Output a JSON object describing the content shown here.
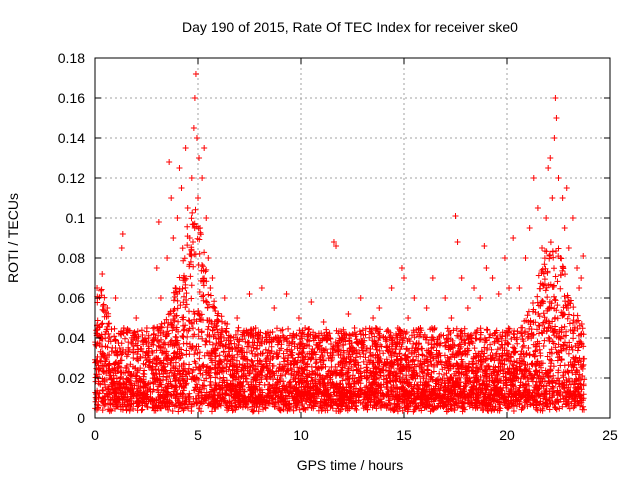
{
  "chart_data": {
    "type": "scatter",
    "title": "Day 190 of 2015, Rate Of TEC Index for receiver ske0",
    "xlabel": "GPS time / hours",
    "ylabel": "ROTI / TECUs",
    "xlim": [
      0,
      25
    ],
    "ylim": [
      0,
      0.18
    ],
    "x_ticks": [
      "0",
      "5",
      "10",
      "15",
      "20",
      "25"
    ],
    "y_ticks": [
      "0",
      "0.02",
      "0.04",
      "0.06",
      "0.08",
      "0.1",
      "0.12",
      "0.14",
      "0.16",
      "0.18"
    ],
    "grid": true,
    "marker": "+",
    "colors": {
      "series": "#ff0000"
    },
    "series": [
      {
        "x": [
          0.05,
          0.1,
          0.2,
          0.3,
          0.35,
          0.5,
          0.6,
          0.8,
          1.0,
          1.2,
          1.3,
          1.35,
          1.4,
          1.5,
          1.8,
          2.0,
          2.2,
          2.5,
          2.6,
          2.8,
          3.0,
          3.1,
          3.2,
          3.3,
          3.5,
          3.6,
          3.7,
          3.8,
          3.9,
          4.0,
          4.1,
          4.2,
          4.3,
          4.4,
          4.5,
          4.6,
          4.7,
          4.8,
          4.85,
          4.9,
          4.95,
          5.0,
          5.05,
          5.1,
          5.2,
          5.3,
          5.4,
          5.5,
          5.6,
          5.7,
          5.8,
          6.0,
          6.3,
          6.6,
          6.9,
          7.2,
          7.5,
          7.8,
          8.1,
          8.4,
          8.7,
          9.0,
          9.3,
          9.6,
          9.9,
          10.2,
          10.5,
          10.8,
          11.1,
          11.4,
          11.6,
          11.7,
          12.0,
          12.3,
          12.6,
          12.9,
          13.2,
          13.5,
          13.8,
          14.1,
          14.4,
          14.7,
          14.9,
          15.0,
          15.2,
          15.5,
          15.8,
          16.1,
          16.4,
          16.7,
          17.0,
          17.3,
          17.5,
          17.6,
          17.8,
          18.1,
          18.4,
          18.7,
          18.9,
          19.0,
          19.3,
          19.6,
          19.9,
          20.1,
          20.3,
          20.6,
          20.9,
          21.1,
          21.3,
          21.5,
          21.7,
          21.9,
          22.0,
          22.1,
          22.2,
          22.3,
          22.35,
          22.4,
          22.5,
          22.6,
          22.7,
          22.8,
          22.9,
          23.0,
          23.2,
          23.4,
          23.5,
          23.6,
          23.7
        ],
        "y": [
          0.012,
          0.065,
          0.025,
          0.04,
          0.072,
          0.03,
          0.055,
          0.02,
          0.06,
          0.035,
          0.085,
          0.092,
          0.045,
          0.025,
          0.015,
          0.05,
          0.03,
          0.01,
          0.04,
          0.025,
          0.075,
          0.098,
          0.06,
          0.035,
          0.08,
          0.128,
          0.11,
          0.09,
          0.065,
          0.1,
          0.125,
          0.115,
          0.07,
          0.135,
          0.105,
          0.09,
          0.12,
          0.145,
          0.16,
          0.172,
          0.14,
          0.11,
          0.13,
          0.095,
          0.12,
          0.135,
          0.1,
          0.08,
          0.065,
          0.07,
          0.055,
          0.04,
          0.06,
          0.035,
          0.05,
          0.03,
          0.062,
          0.045,
          0.065,
          0.025,
          0.055,
          0.04,
          0.062,
          0.03,
          0.05,
          0.045,
          0.058,
          0.035,
          0.048,
          0.04,
          0.088,
          0.086,
          0.03,
          0.052,
          0.045,
          0.06,
          0.035,
          0.05,
          0.055,
          0.04,
          0.065,
          0.045,
          0.075,
          0.07,
          0.05,
          0.06,
          0.045,
          0.055,
          0.07,
          0.04,
          0.06,
          0.05,
          0.101,
          0.088,
          0.07,
          0.055,
          0.065,
          0.06,
          0.086,
          0.075,
          0.07,
          0.062,
          0.08,
          0.065,
          0.09,
          0.065,
          0.08,
          0.095,
          0.12,
          0.105,
          0.085,
          0.1,
          0.125,
          0.13,
          0.11,
          0.14,
          0.16,
          0.15,
          0.12,
          0.08,
          0.11,
          0.095,
          0.115,
          0.085,
          0.1,
          0.075,
          0.065,
          0.07,
          0.081
        ]
      }
    ]
  }
}
